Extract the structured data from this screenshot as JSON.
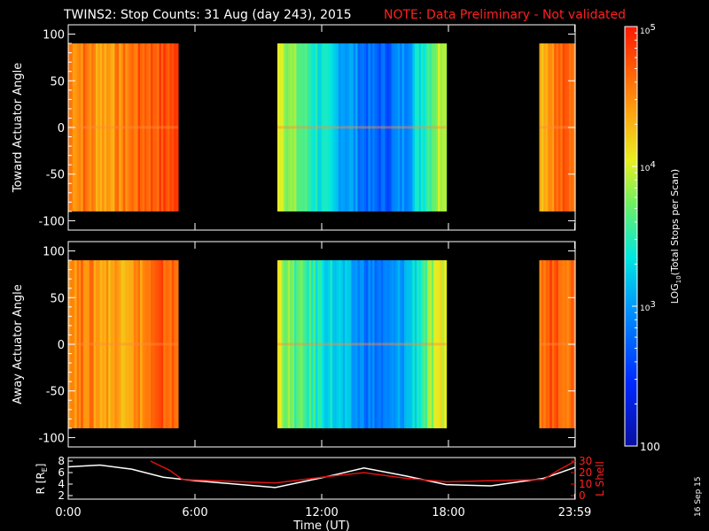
{
  "title": "TWINS2: Stop Counts: 31 Aug (day 243), 2015",
  "note": "NOTE: Data Preliminary - Not validated",
  "side_stamp": "16 Sep 15",
  "colors": {
    "background": "#000000",
    "axes": "#ffffff",
    "note": "#ff2020",
    "r_line": "#ffffff",
    "lshell_line": "#e01010"
  },
  "chart_data": [
    {
      "type": "heatmap",
      "ylabel": "Toward Actuator Angle",
      "ylim": [
        -110,
        110
      ],
      "yticks": [
        100,
        50,
        0,
        -50,
        -100
      ],
      "x_unit": "hours UT",
      "xlim": [
        0,
        24
      ],
      "data_intervals": [
        [
          0,
          5.2
        ],
        [
          9.9,
          17.9
        ],
        [
          22.3,
          24
        ]
      ],
      "level_profile": [
        [
          0.0,
          4.6
        ],
        [
          0.4,
          4.5
        ],
        [
          0.8,
          4.6
        ],
        [
          1.5,
          4.4
        ],
        [
          2.5,
          4.5
        ],
        [
          3.5,
          4.7
        ],
        [
          4.5,
          4.75
        ],
        [
          5.2,
          4.8
        ],
        [
          9.9,
          4.2
        ],
        [
          10.5,
          3.8
        ],
        [
          11.5,
          3.5
        ],
        [
          12.5,
          3.2
        ],
        [
          13.5,
          3.0
        ],
        [
          14.0,
          2.8
        ],
        [
          15.0,
          2.7
        ],
        [
          16.0,
          3.0
        ],
        [
          17.0,
          3.6
        ],
        [
          17.9,
          4.1
        ],
        [
          22.3,
          4.3
        ],
        [
          23.0,
          4.6
        ],
        [
          24.0,
          4.7
        ]
      ]
    },
    {
      "type": "heatmap",
      "ylabel": "Away Actuator Angle",
      "ylim": [
        -110,
        110
      ],
      "yticks": [
        100,
        50,
        0,
        -50,
        -100
      ],
      "x_unit": "hours UT",
      "xlim": [
        0,
        24
      ],
      "data_intervals": [
        [
          0,
          5.2
        ],
        [
          9.9,
          17.9
        ],
        [
          22.3,
          24
        ]
      ],
      "level_profile": [
        [
          0.0,
          4.6
        ],
        [
          0.4,
          4.5
        ],
        [
          0.8,
          4.6
        ],
        [
          1.5,
          4.4
        ],
        [
          2.5,
          4.4
        ],
        [
          3.5,
          4.5
        ],
        [
          4.5,
          4.7
        ],
        [
          5.2,
          4.6
        ],
        [
          9.9,
          4.1
        ],
        [
          10.5,
          3.7
        ],
        [
          11.5,
          3.5
        ],
        [
          12.5,
          3.3
        ],
        [
          13.5,
          3.0
        ],
        [
          14.0,
          2.9
        ],
        [
          15.0,
          2.8
        ],
        [
          16.0,
          3.1
        ],
        [
          17.0,
          3.7
        ],
        [
          17.9,
          4.1
        ],
        [
          22.3,
          4.5
        ],
        [
          23.0,
          4.8
        ],
        [
          24.0,
          4.6
        ]
      ]
    },
    {
      "type": "line",
      "ylabel": "R [R",
      "ylabel_sub": "E",
      "ylabel_end": "]",
      "y2label": "L Shell",
      "ylim": [
        2,
        8
      ],
      "yticks": [
        8,
        6,
        4,
        2
      ],
      "y2lim": [
        0,
        30
      ],
      "y2ticks": [
        30,
        20,
        10,
        0
      ],
      "xticks": [
        {
          "x": 0,
          "label": "0:00"
        },
        {
          "x": 6,
          "label": "6:00"
        },
        {
          "x": 12,
          "label": "12:00"
        },
        {
          "x": 18,
          "label": "18:00"
        },
        {
          "x": 23.98,
          "label": "23:59"
        }
      ],
      "xlabel": "Time (UT)",
      "series": [
        {
          "axis": "left",
          "values": [
            [
              0,
              7.0
            ],
            [
              1.5,
              7.3
            ],
            [
              3,
              6.6
            ],
            [
              4.5,
              5.2
            ],
            [
              6,
              4.6
            ],
            [
              9.8,
              3.4
            ],
            [
              12,
              5.1
            ],
            [
              14,
              6.8
            ],
            [
              16,
              5.4
            ],
            [
              17.9,
              3.9
            ],
            [
              20,
              3.7
            ],
            [
              22.5,
              5.0
            ],
            [
              24,
              6.9
            ]
          ]
        },
        {
          "axis": "right",
          "values": [
            [
              3.9,
              30
            ],
            [
              4.8,
              22
            ],
            [
              5.4,
              14
            ],
            [
              9.8,
              11
            ],
            [
              12,
              16
            ],
            [
              14,
              20
            ],
            [
              16,
              15
            ],
            [
              17.9,
              12
            ],
            [
              22.5,
              14
            ],
            [
              23.2,
              22
            ],
            [
              24,
              30
            ]
          ]
        }
      ]
    }
  ],
  "colorbar": {
    "label": "LOG",
    "label_sub": "10",
    "label_end": "(Total Stops per Scan)",
    "range": [
      2,
      5
    ],
    "ticks": [
      {
        "value": 5,
        "label": "10",
        "sup": "5"
      },
      {
        "value": 4,
        "label": "10",
        "sup": "4"
      },
      {
        "value": 3,
        "label": "10",
        "sup": "3"
      },
      {
        "value": 2,
        "label": "100",
        "sup": ""
      }
    ]
  }
}
